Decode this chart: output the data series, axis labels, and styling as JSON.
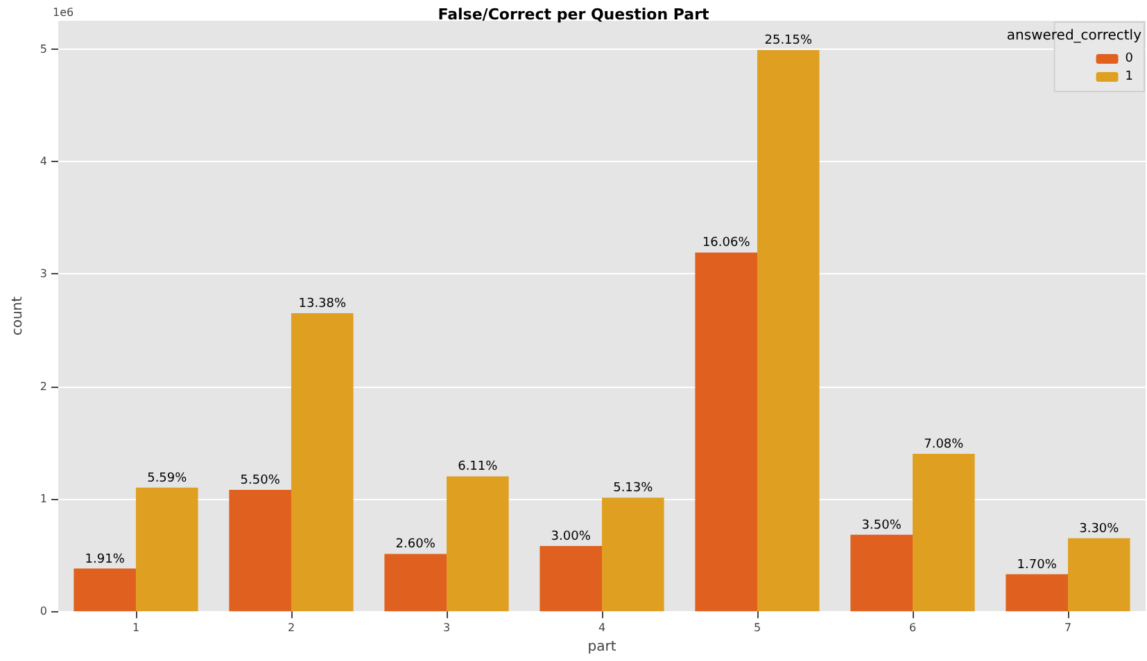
{
  "chart_data": {
    "type": "bar",
    "title": "False/Correct per Question Part",
    "xlabel": "part",
    "ylabel": "count",
    "legend_title": "answered_correctly",
    "annotations": [
      "1e6",
      {
        "text": "1.91%",
        "x": "1",
        "y": 0.38
      },
      {
        "text": "5.50%",
        "x": "2",
        "y": 1.08
      },
      {
        "text": "2.60%",
        "x": "3",
        "y": 0.51
      },
      {
        "text": "3.00%",
        "x": "4",
        "y": 0.58
      },
      {
        "text": "16.06%",
        "x": "5",
        "y": 3.19
      },
      {
        "text": "3.50%",
        "x": "6",
        "y": 0.68
      },
      {
        "text": "1.70%",
        "x": "7",
        "y": 0.33
      },
      {
        "text": "5.59%",
        "x": "1",
        "y": 1.1
      },
      {
        "text": "13.38%",
        "x": "2",
        "y": 2.65
      },
      {
        "text": "6.11%",
        "x": "3",
        "y": 1.2
      },
      {
        "text": "5.13%",
        "x": "4",
        "y": 1.01
      },
      {
        "text": "25.15%",
        "x": "5",
        "y": 4.99
      },
      {
        "text": "7.08%",
        "x": "6",
        "y": 1.4
      },
      {
        "text": "3.30%",
        "x": "7",
        "y": 0.65
      }
    ],
    "categories": [
      "1",
      "2",
      "3",
      "4",
      "5",
      "6",
      "7"
    ],
    "series": [
      {
        "name": "0",
        "color": "#e0611f",
        "values": [
          0.38,
          1.08,
          0.51,
          0.58,
          3.19,
          0.68,
          0.33
        ]
      },
      {
        "name": "1",
        "color": "#dfa021",
        "values": [
          1.1,
          2.65,
          1.2,
          1.01,
          4.99,
          1.4,
          0.65
        ]
      }
    ],
    "ylim": [
      0,
      5.25
    ],
    "yticks": [
      0,
      1,
      2,
      3,
      4,
      5
    ],
    "grid": "y",
    "legend": "top right"
  }
}
